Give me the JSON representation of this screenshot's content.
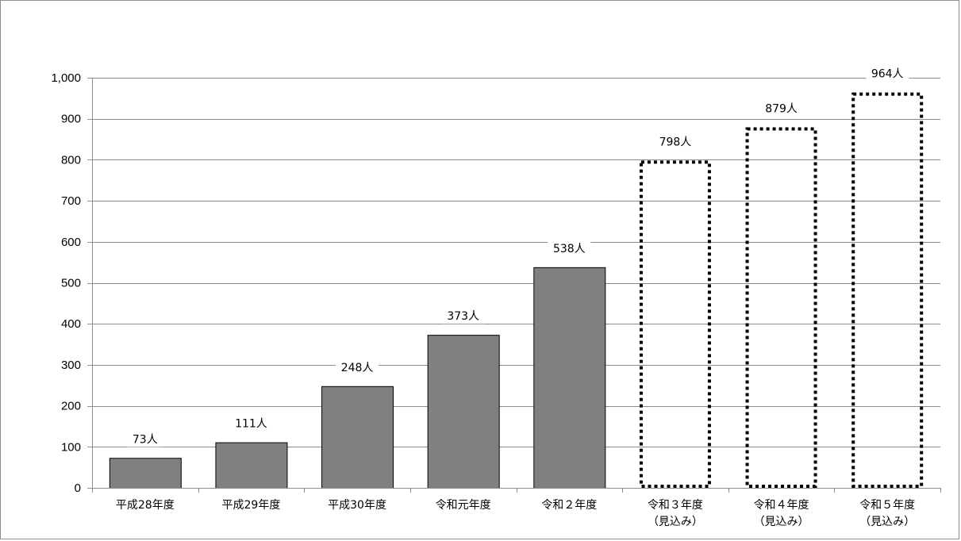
{
  "chart_data": {
    "type": "bar",
    "title": "",
    "xlabel": "",
    "ylabel": "",
    "ylim": [
      0,
      1000
    ],
    "yticks": [
      0,
      100,
      200,
      300,
      400,
      500,
      600,
      700,
      800,
      900,
      1000
    ],
    "ytick_labels": [
      "0",
      "100",
      "200",
      "300",
      "400",
      "500",
      "600",
      "700",
      "800",
      "900",
      "1,000"
    ],
    "grid": true,
    "categories": [
      [
        "平成28年度"
      ],
      [
        "平成29年度"
      ],
      [
        "平成30年度"
      ],
      [
        "令和元年度"
      ],
      [
        "令和２年度"
      ],
      [
        "令和３年度",
        "（見込み）"
      ],
      [
        "令和４年度",
        "（見込み）"
      ],
      [
        "令和５年度",
        "（見込み）"
      ]
    ],
    "values": [
      73,
      111,
      248,
      373,
      538,
      798,
      879,
      964
    ],
    "data_labels": [
      "73人",
      "111人",
      "248人",
      "373人",
      "538人",
      "798人",
      "879人",
      "964人"
    ],
    "bar_style": [
      "actual",
      "actual",
      "actual",
      "actual",
      "actual",
      "projected",
      "projected",
      "projected"
    ],
    "colors": {
      "actual_fill": "#808080",
      "bar_outline": "#000000",
      "gridline": "#8c8c8c",
      "projected_outline": "#000000"
    }
  }
}
